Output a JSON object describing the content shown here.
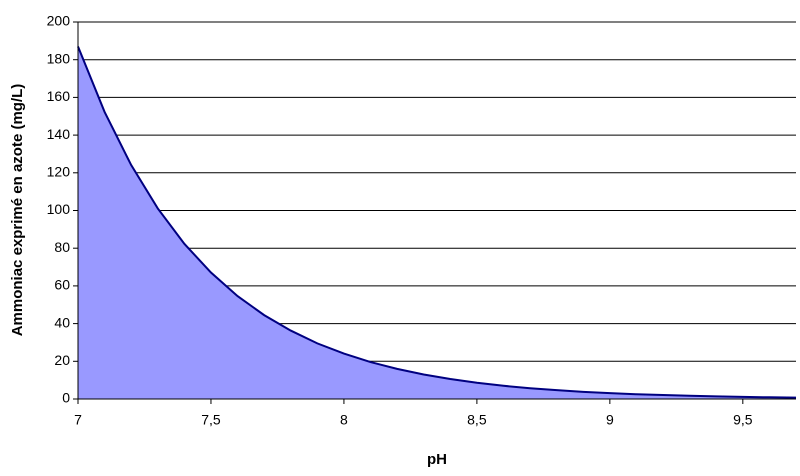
{
  "chart_data": {
    "type": "area",
    "x_label": "pH",
    "y_label": "Ammoniac exprimé en azote (mg/L)",
    "x": [
      7,
      7.1,
      7.2,
      7.3,
      7.4,
      7.5,
      7.6,
      7.7,
      7.8,
      7.9,
      8,
      8.1,
      8.2,
      8.3,
      8.4,
      8.5,
      8.6,
      8.7,
      8.8,
      8.9,
      9,
      9.1,
      9.2,
      9.3,
      9.4,
      9.5,
      9.6,
      9.7
    ],
    "series": [
      {
        "color": "#9999ff",
        "line_color": "#000080",
        "values": [
          187,
          152.3,
          124.1,
          101.1,
          82.3,
          67.1,
          54.6,
          44.5,
          36.3,
          29.5,
          24.1,
          19.6,
          16.0,
          13.0,
          10.6,
          8.6,
          7.0,
          5.7,
          4.7,
          3.8,
          3.1,
          2.5,
          2.1,
          1.7,
          1.4,
          1.1,
          0.9,
          0.7
        ]
      }
    ],
    "xlim": [
      7,
      9.7
    ],
    "xticks": [
      7,
      {
        "value": 7.5,
        "label": "7,5"
      },
      8,
      {
        "value": 8.5,
        "label": "8,5"
      },
      9,
      {
        "value": 9.5,
        "label": "9,5"
      }
    ],
    "ylim": [
      0,
      200
    ],
    "yticks": [
      0,
      20,
      40,
      60,
      80,
      100,
      120,
      140,
      160,
      180,
      200
    ],
    "grid": true
  }
}
